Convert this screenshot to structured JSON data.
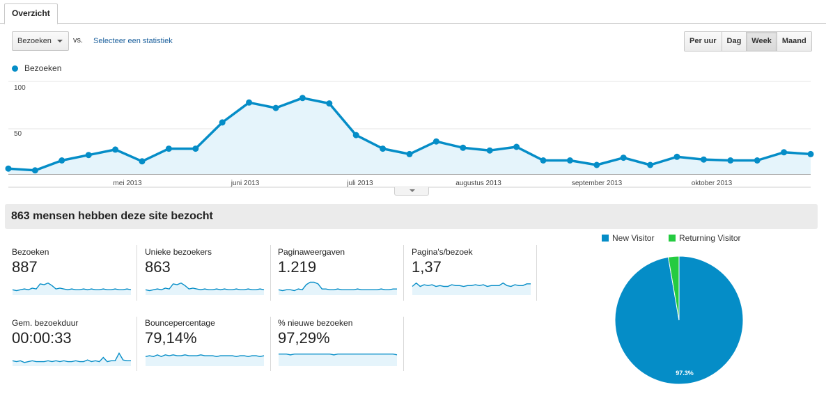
{
  "tabs": [
    {
      "label": "Overzicht"
    }
  ],
  "controls": {
    "metric_select_value": "Bezoeken",
    "vs_label": "vs.",
    "select_stat_link": "Selecteer een statistiek",
    "period_buttons": [
      "Per uur",
      "Dag",
      "Week",
      "Maand"
    ],
    "active_period": "Week"
  },
  "main_chart": {
    "legend_label": "Bezoeken",
    "y_ticks": [
      "100",
      "50"
    ],
    "x_labels": [
      "mei 2013",
      "juni 2013",
      "juli 2013",
      "augustus 2013",
      "september 2013",
      "oktober 2013"
    ]
  },
  "chart_data": {
    "type": "area",
    "series": [
      {
        "name": "Bezoeken",
        "values": [
          6,
          4,
          15,
          21,
          27,
          14,
          28,
          28,
          57,
          79,
          73,
          84,
          78,
          43,
          28,
          22,
          36,
          29,
          26,
          30,
          15,
          15,
          10,
          18,
          10,
          19,
          16,
          15,
          15,
          24,
          22
        ]
      }
    ],
    "x_labels": [
      "mei 2013",
      "juni 2013",
      "juli 2013",
      "augustus 2013",
      "september 2013",
      "oktober 2013"
    ],
    "y_ticks": [
      100,
      50
    ],
    "ylim": [
      0,
      100
    ],
    "color": "#058dc7",
    "fill": "#e5f4fb",
    "grid": true
  },
  "summary": {
    "title": "863 mensen hebben deze site bezocht"
  },
  "metrics": [
    {
      "label": "Bezoeken",
      "value": "887",
      "spark": [
        3,
        2,
        3,
        4,
        3,
        5,
        4,
        10,
        9,
        11,
        8,
        4,
        5,
        4,
        3,
        4,
        3,
        3,
        4,
        3,
        4,
        3,
        3,
        4,
        3,
        3,
        4,
        3,
        3,
        4,
        3
      ]
    },
    {
      "label": "Unieke bezoekers",
      "value": "863",
      "spark": [
        3,
        2,
        3,
        4,
        3,
        5,
        4,
        10,
        9,
        11,
        8,
        4,
        5,
        4,
        3,
        4,
        3,
        3,
        4,
        3,
        4,
        3,
        3,
        4,
        3,
        3,
        4,
        3,
        3,
        4,
        3
      ]
    },
    {
      "label": "Paginaweergaven",
      "value": "1.219",
      "spark": [
        3,
        2,
        3,
        3,
        2,
        4,
        3,
        9,
        12,
        12,
        10,
        4,
        4,
        3,
        3,
        4,
        3,
        3,
        3,
        3,
        4,
        3,
        3,
        3,
        3,
        3,
        4,
        3,
        3,
        4,
        4
      ]
    },
    {
      "label": "Pagina's/bezoek",
      "value": "1,37",
      "spark": [
        7,
        11,
        7,
        9,
        8,
        9,
        7,
        8,
        7,
        7,
        9,
        8,
        8,
        7,
        8,
        8,
        9,
        8,
        9,
        7,
        8,
        8,
        8,
        11,
        8,
        7,
        9,
        8,
        8,
        10,
        10
      ]
    },
    {
      "label": "Gem. bezoekduur",
      "value": "00:00:33",
      "spark": [
        3,
        2,
        3,
        1,
        2,
        3,
        2,
        2,
        2,
        3,
        2,
        3,
        2,
        3,
        2,
        2,
        3,
        2,
        2,
        4,
        2,
        3,
        2,
        7,
        2,
        3,
        3,
        12,
        4,
        3,
        3
      ]
    },
    {
      "label": "Bouncepercentage",
      "value": "79,14%",
      "spark": [
        8,
        9,
        8,
        10,
        8,
        10,
        9,
        10,
        9,
        9,
        10,
        9,
        9,
        9,
        10,
        9,
        9,
        9,
        8,
        9,
        9,
        9,
        9,
        8,
        9,
        9,
        8,
        9,
        9,
        8,
        9
      ]
    },
    {
      "label": "% nieuwe bezoeken",
      "value": "97,29%",
      "spark": [
        11,
        11,
        11,
        10,
        11,
        11,
        11,
        11,
        11,
        11,
        11,
        11,
        11,
        11,
        10,
        11,
        11,
        11,
        11,
        11,
        11,
        11,
        11,
        11,
        11,
        11,
        11,
        11,
        11,
        11,
        10
      ]
    }
  ],
  "pie": {
    "legend": [
      {
        "label": "New Visitor",
        "color": "#058dc7"
      },
      {
        "label": "Returning Visitor",
        "color": "#24cb40"
      }
    ],
    "slices": [
      {
        "label": "New Visitor",
        "value": 97.3,
        "color": "#058dc7"
      },
      {
        "label": "Returning Visitor",
        "value": 2.7,
        "color": "#24cb40"
      }
    ],
    "slice_label": "97.3%"
  }
}
